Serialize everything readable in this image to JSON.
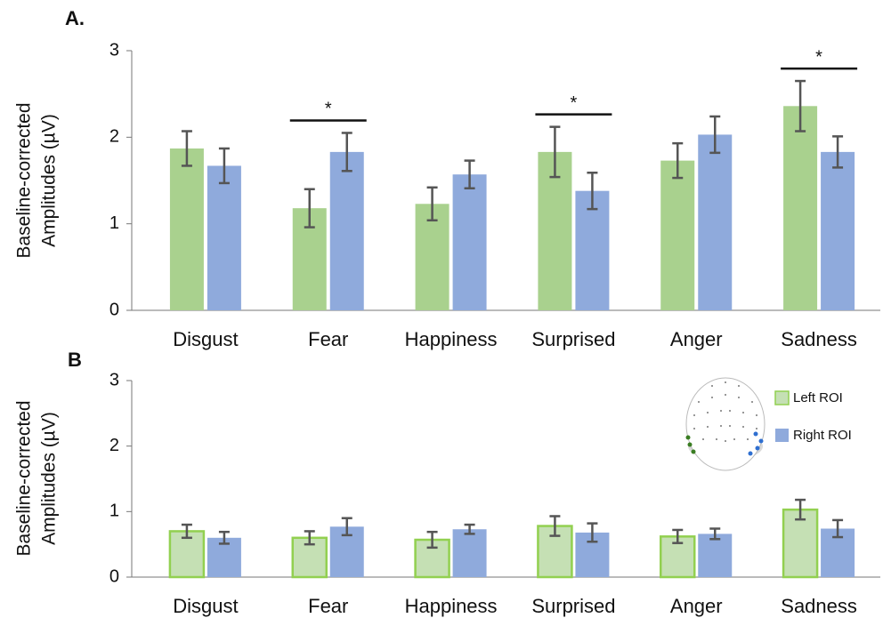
{
  "chart_data": [
    {
      "type": "bar",
      "panel_label": "A.",
      "ylabel": [
        "Baseline-corrected",
        "Amplitudes (µV)"
      ],
      "categories": [
        "Disgust",
        "Fear",
        "Happiness",
        "Surprised",
        "Anger",
        "Sadness"
      ],
      "series": [
        {
          "name": "Left ROI",
          "color": "#a9d18e",
          "values": [
            1.87,
            1.18,
            1.23,
            1.83,
            1.73,
            2.36
          ],
          "errors": [
            0.2,
            0.22,
            0.19,
            0.29,
            0.2,
            0.29
          ]
        },
        {
          "name": "Right ROI",
          "color": "#8faadc",
          "values": [
            1.67,
            1.83,
            1.57,
            1.38,
            2.03,
            1.83
          ],
          "errors": [
            0.2,
            0.22,
            0.16,
            0.21,
            0.21,
            0.18
          ]
        }
      ],
      "annotations": [
        {
          "text": "*",
          "category": "Fear"
        },
        {
          "text": "*",
          "category": "Surprised"
        },
        {
          "text": "*",
          "category": "Sadness"
        }
      ],
      "ylim": [
        0,
        3
      ],
      "yticks": [
        0,
        1,
        2,
        3
      ],
      "grid": false
    },
    {
      "type": "bar",
      "panel_label": "B",
      "ylabel": [
        "Baseline-corrected",
        "Amplitudes (µV)"
      ],
      "categories": [
        "Disgust",
        "Fear",
        "Happiness",
        "Surprised",
        "Anger",
        "Sadness"
      ],
      "series": [
        {
          "name": "Left ROI",
          "color": "#c5e0b4",
          "stroke": "#92d050",
          "values": [
            0.7,
            0.6,
            0.57,
            0.78,
            0.62,
            1.03
          ],
          "errors": [
            0.1,
            0.1,
            0.12,
            0.15,
            0.1,
            0.15
          ]
        },
        {
          "name": "Right ROI",
          "color": "#8faadc",
          "values": [
            0.6,
            0.77,
            0.73,
            0.68,
            0.66,
            0.74
          ],
          "errors": [
            0.09,
            0.13,
            0.07,
            0.14,
            0.08,
            0.13
          ]
        }
      ],
      "legend": "upper right",
      "ylim": [
        0,
        3
      ],
      "yticks": [
        0,
        1,
        2,
        3
      ],
      "grid": false
    }
  ]
}
